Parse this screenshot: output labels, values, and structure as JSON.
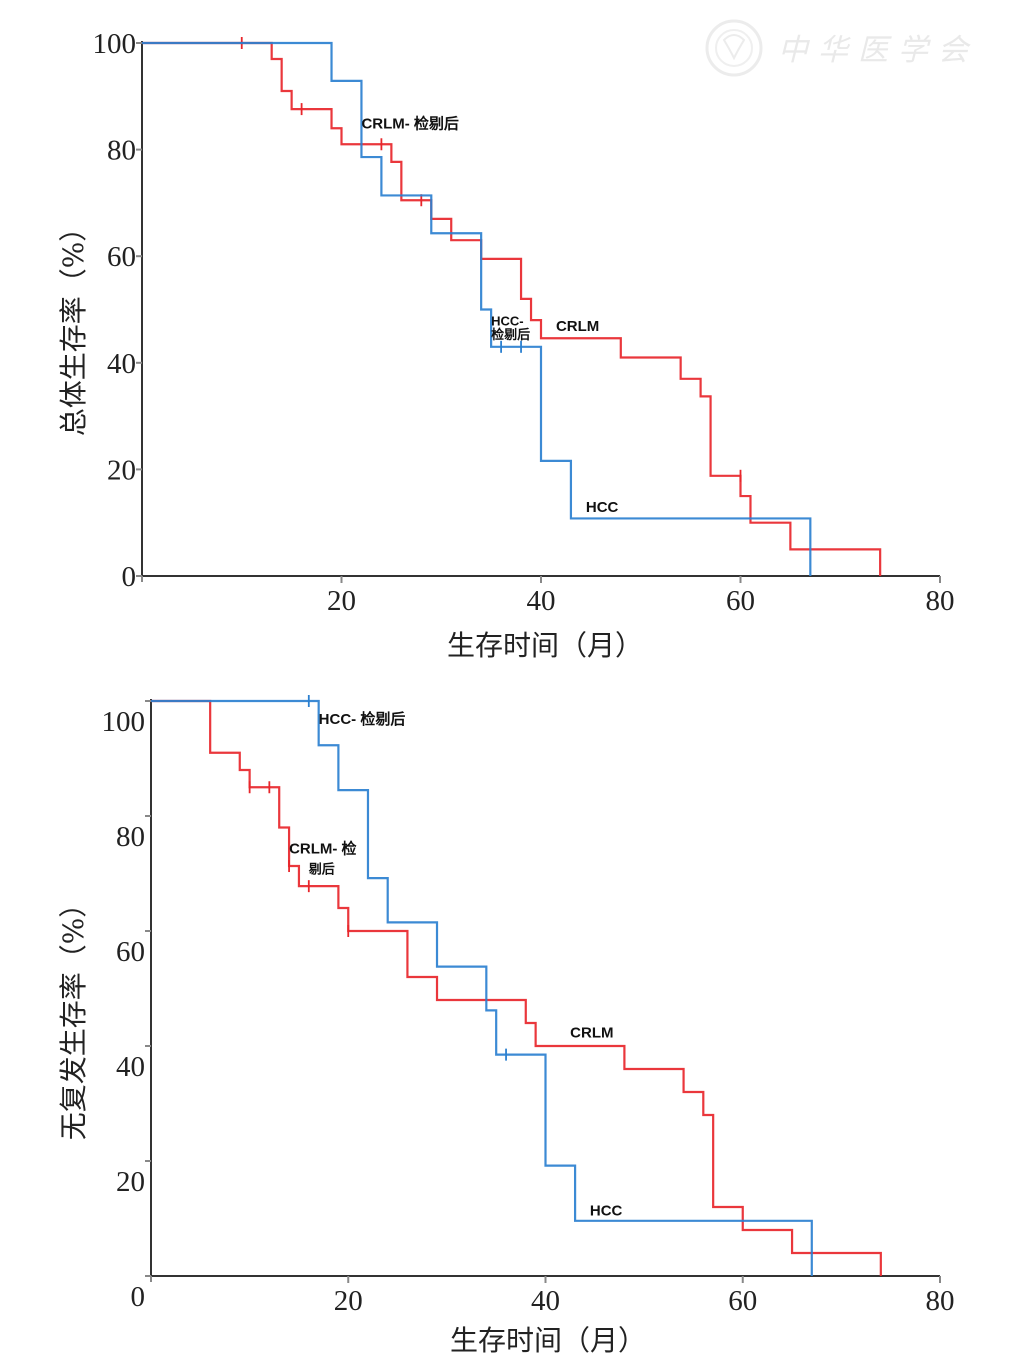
{
  "watermark": {
    "text": "中华医学会",
    "icon": "society-seal-icon"
  },
  "colors": {
    "CRLM": "#e8262b",
    "HCC": "#2b80d0",
    "axis": "#333333"
  },
  "chart_data": [
    {
      "type": "line",
      "subtype": "kaplan-meier-step",
      "title": "",
      "xlabel": "生存时间（月）",
      "ylabel": "总体生存率（%）",
      "xlim": [
        0,
        80
      ],
      "ylim": [
        0,
        100
      ],
      "xticks": [
        "20",
        "40",
        "60",
        "80"
      ],
      "yticks": [
        "0",
        "20",
        "40",
        "60",
        "80",
        "100"
      ],
      "grid": false,
      "legend": "inline-labels",
      "series": [
        {
          "name": "CRLM",
          "color": "#e8262b",
          "steps": [
            [
              0,
              100
            ],
            [
              13,
              97
            ],
            [
              14,
              91
            ],
            [
              15,
              87.6
            ],
            [
              19,
              84
            ],
            [
              20,
              81
            ],
            [
              25,
              77.7
            ],
            [
              26,
              70.5
            ],
            [
              29,
              67
            ],
            [
              31,
              63
            ],
            [
              34,
              59.5
            ],
            [
              38,
              52
            ],
            [
              39,
              48
            ],
            [
              40,
              44.6
            ],
            [
              48,
              41
            ],
            [
              54,
              37
            ],
            [
              56,
              33.7
            ],
            [
              57,
              18.8
            ],
            [
              60,
              15
            ],
            [
              61,
              10
            ],
            [
              65,
              5
            ],
            [
              74,
              0
            ]
          ],
          "censored": [
            [
              10,
              100
            ],
            [
              16,
              87.6
            ],
            [
              24,
              81
            ],
            [
              28,
              70.5
            ],
            [
              60,
              18.8
            ]
          ]
        },
        {
          "name": "HCC",
          "color": "#2b80d0",
          "steps": [
            [
              0,
              100
            ],
            [
              19,
              92.9
            ],
            [
              22,
              78.6
            ],
            [
              24,
              71.4
            ],
            [
              29,
              64.3
            ],
            [
              34,
              50
            ],
            [
              35,
              43
            ],
            [
              40,
              21.6
            ],
            [
              43,
              10.8
            ],
            [
              67,
              0
            ]
          ],
          "censored": [
            [
              36,
              43
            ],
            [
              38,
              43
            ]
          ]
        }
      ],
      "annotations": [
        {
          "text": "CRLM- 检剔后",
          "x": 22,
          "y": 84
        },
        {
          "text": "HCC-",
          "x": 35,
          "y": 47
        },
        {
          "text": "检剔后",
          "x": 35,
          "y": 44.5
        },
        {
          "text": "CRLM",
          "x": 41.5,
          "y": 46
        },
        {
          "text": "HCC",
          "x": 44.5,
          "y": 12
        }
      ]
    },
    {
      "type": "line",
      "subtype": "kaplan-meier-step",
      "title": "",
      "xlabel": "生存时间（月）",
      "ylabel": "无复发生存率（%）",
      "xlim": [
        0,
        80
      ],
      "ylim": [
        0,
        100
      ],
      "xticks": [
        "20",
        "40",
        "60",
        "80"
      ],
      "yticks": [
        "0",
        "20",
        "40",
        "60",
        "80",
        "100"
      ],
      "grid": false,
      "legend": "inline-labels",
      "series": [
        {
          "name": "CRLM",
          "color": "#e8262b",
          "steps": [
            [
              0,
              100
            ],
            [
              6,
              91
            ],
            [
              9,
              88
            ],
            [
              10,
              85
            ],
            [
              13,
              78
            ],
            [
              14,
              71.3
            ],
            [
              15,
              67.8
            ],
            [
              19,
              64
            ],
            [
              20,
              60
            ],
            [
              26,
              52
            ],
            [
              29,
              48
            ],
            [
              38,
              44
            ],
            [
              39,
              40
            ],
            [
              48,
              36
            ],
            [
              54,
              32
            ],
            [
              56,
              28
            ],
            [
              57,
              12
            ],
            [
              60,
              8
            ],
            [
              65,
              4
            ],
            [
              74,
              0
            ]
          ],
          "censored": [
            [
              10,
              85
            ],
            [
              12,
              85
            ],
            [
              14,
              71.3
            ],
            [
              16,
              67.8
            ],
            [
              20,
              60
            ]
          ]
        },
        {
          "name": "HCC",
          "color": "#2b80d0",
          "steps": [
            [
              0,
              100
            ],
            [
              17,
              92.3
            ],
            [
              19,
              84.5
            ],
            [
              22,
              69.2
            ],
            [
              24,
              61.5
            ],
            [
              29,
              53.8
            ],
            [
              34,
              46.2
            ],
            [
              35,
              38.5
            ],
            [
              40,
              19.2
            ],
            [
              43,
              9.6
            ],
            [
              67,
              0
            ]
          ],
          "censored": [
            [
              16,
              100
            ],
            [
              36,
              38.5
            ]
          ]
        }
      ],
      "annotations": [
        {
          "text": "HCC- 检剔后",
          "x": 17,
          "y": 96
        },
        {
          "text": "CRLM- 检",
          "x": 14,
          "y": 73.5
        },
        {
          "text": "剔后",
          "x": 16,
          "y": 70
        },
        {
          "text": "CRLM",
          "x": 42.5,
          "y": 41.5
        },
        {
          "text": "HCC",
          "x": 44.5,
          "y": 10.5
        }
      ]
    }
  ]
}
